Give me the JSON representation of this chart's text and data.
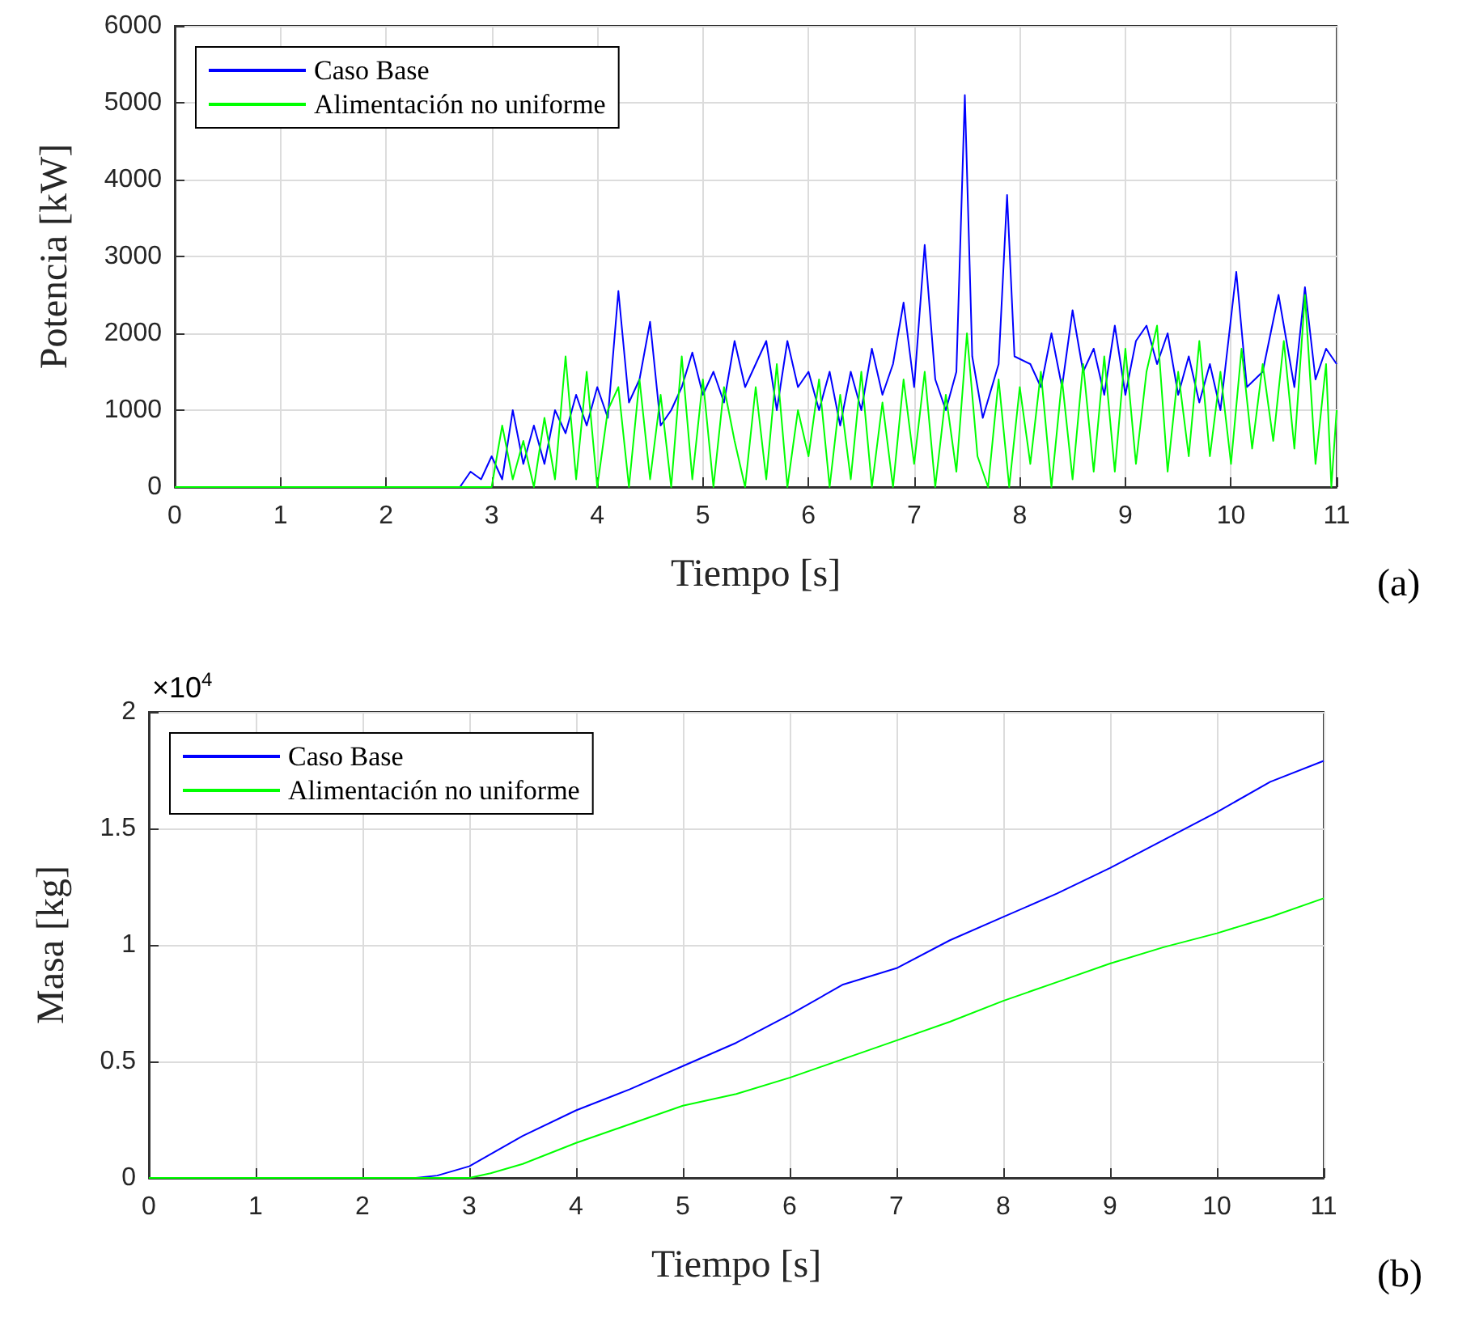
{
  "chart_data": [
    {
      "type": "line",
      "xlabel": "Tiempo [s]",
      "ylabel": "Potencia [kW]",
      "xlim": [
        0,
        11
      ],
      "xticks": [
        0,
        1,
        2,
        3,
        4,
        5,
        6,
        7,
        8,
        9,
        10,
        11
      ],
      "ylim": [
        0,
        6000
      ],
      "yticks": [
        0,
        1000,
        2000,
        3000,
        4000,
        5000,
        6000
      ],
      "grid": true,
      "legend": "top left",
      "annotations": [
        "(a)"
      ],
      "series": [
        {
          "name": "Caso Base",
          "color": "#0000ff",
          "x": [
            0,
            2.7,
            2.8,
            2.9,
            3.0,
            3.1,
            3.2,
            3.3,
            3.4,
            3.5,
            3.6,
            3.7,
            3.8,
            3.9,
            4.0,
            4.1,
            4.2,
            4.3,
            4.4,
            4.5,
            4.6,
            4.7,
            4.8,
            4.9,
            5.0,
            5.1,
            5.2,
            5.3,
            5.4,
            5.5,
            5.6,
            5.7,
            5.8,
            5.9,
            6.0,
            6.1,
            6.2,
            6.3,
            6.4,
            6.5,
            6.6,
            6.7,
            6.8,
            6.9,
            7.0,
            7.1,
            7.2,
            7.3,
            7.4,
            7.48,
            7.55,
            7.65,
            7.8,
            7.88,
            7.95,
            8.1,
            8.2,
            8.3,
            8.4,
            8.5,
            8.6,
            8.7,
            8.8,
            8.9,
            9.0,
            9.1,
            9.2,
            9.3,
            9.4,
            9.5,
            9.6,
            9.7,
            9.8,
            9.9,
            10.05,
            10.15,
            10.3,
            10.45,
            10.6,
            10.7,
            10.8,
            10.9,
            11.0
          ],
          "values": [
            0,
            0,
            200,
            100,
            400,
            100,
            1000,
            300,
            800,
            300,
            1000,
            700,
            1200,
            800,
            1300,
            900,
            2550,
            1100,
            1400,
            2150,
            800,
            1000,
            1300,
            1750,
            1200,
            1500,
            1100,
            1900,
            1300,
            1600,
            1900,
            1000,
            1900,
            1300,
            1500,
            1000,
            1500,
            800,
            1500,
            1000,
            1800,
            1200,
            1600,
            2400,
            1300,
            3150,
            1400,
            1000,
            1500,
            5100,
            1700,
            900,
            1600,
            3800,
            1700,
            1600,
            1300,
            2000,
            1300,
            2300,
            1500,
            1800,
            1200,
            2100,
            1200,
            1900,
            2100,
            1600,
            2000,
            1200,
            1700,
            1100,
            1600,
            1000,
            2800,
            1300,
            1500,
            2500,
            1300,
            2600,
            1400,
            1800,
            1600
          ]
        },
        {
          "name": "Alimentación no uniforme",
          "color": "#00ff00",
          "x": [
            0,
            3.0,
            3.1,
            3.2,
            3.3,
            3.4,
            3.5,
            3.6,
            3.7,
            3.8,
            3.9,
            4.0,
            4.1,
            4.2,
            4.3,
            4.4,
            4.5,
            4.6,
            4.7,
            4.8,
            4.9,
            5.0,
            5.1,
            5.2,
            5.3,
            5.4,
            5.5,
            5.6,
            5.7,
            5.8,
            5.9,
            6.0,
            6.1,
            6.2,
            6.3,
            6.4,
            6.5,
            6.6,
            6.7,
            6.8,
            6.9,
            7.0,
            7.1,
            7.2,
            7.3,
            7.4,
            7.5,
            7.6,
            7.7,
            7.8,
            7.9,
            8.0,
            8.1,
            8.2,
            8.3,
            8.4,
            8.5,
            8.6,
            8.7,
            8.8,
            8.9,
            9.0,
            9.1,
            9.2,
            9.3,
            9.4,
            9.5,
            9.6,
            9.7,
            9.8,
            9.9,
            10.0,
            10.1,
            10.2,
            10.3,
            10.4,
            10.5,
            10.6,
            10.7,
            10.8,
            10.9,
            10.95,
            11.0
          ],
          "values": [
            0,
            0,
            800,
            100,
            600,
            0,
            900,
            100,
            1700,
            100,
            1500,
            0,
            1000,
            1300,
            0,
            1400,
            100,
            1200,
            0,
            1700,
            100,
            1400,
            0,
            1300,
            600,
            0,
            1300,
            100,
            1600,
            0,
            1000,
            400,
            1400,
            0,
            1200,
            100,
            1500,
            0,
            1100,
            0,
            1400,
            300,
            1500,
            0,
            1200,
            200,
            2000,
            400,
            0,
            1400,
            0,
            1300,
            300,
            1500,
            0,
            1400,
            100,
            1600,
            200,
            1700,
            200,
            1800,
            300,
            1500,
            2100,
            200,
            1500,
            400,
            1900,
            400,
            1500,
            300,
            1800,
            500,
            1600,
            600,
            1900,
            500,
            2500,
            300,
            1600,
            0,
            1000
          ]
        }
      ]
    },
    {
      "type": "line",
      "xlabel": "Tiempo [s]",
      "ylabel": "Masa [kg]",
      "xlim": [
        0,
        11
      ],
      "xticks": [
        0,
        1,
        2,
        3,
        4,
        5,
        6,
        7,
        8,
        9,
        10,
        11
      ],
      "ylim": [
        0,
        2
      ],
      "yticks": [
        0,
        0.5,
        1,
        1.5,
        2
      ],
      "grid": true,
      "legend": "top left",
      "annotations": [
        "×10$^{4}$",
        "(b)"
      ],
      "series": [
        {
          "name": "Caso Base",
          "color": "#0000ff",
          "x": [
            0,
            2.5,
            2.7,
            3.0,
            3.5,
            4.0,
            4.5,
            5.0,
            5.5,
            6.0,
            6.5,
            7.0,
            7.5,
            8.0,
            8.5,
            9.0,
            9.5,
            10.0,
            10.5,
            11.0
          ],
          "values": [
            0,
            0,
            0.01,
            0.05,
            0.18,
            0.29,
            0.38,
            0.48,
            0.58,
            0.7,
            0.83,
            0.9,
            1.02,
            1.12,
            1.22,
            1.33,
            1.45,
            1.57,
            1.7,
            1.79
          ]
        },
        {
          "name": "Alimentación no uniforme",
          "color": "#00ff00",
          "x": [
            0,
            3.0,
            3.2,
            3.5,
            4.0,
            4.5,
            5.0,
            5.5,
            6.0,
            6.5,
            7.0,
            7.5,
            8.0,
            8.5,
            9.0,
            9.5,
            10.0,
            10.5,
            11.0
          ],
          "values": [
            0,
            0,
            0.02,
            0.06,
            0.15,
            0.23,
            0.31,
            0.36,
            0.43,
            0.51,
            0.59,
            0.67,
            0.76,
            0.84,
            0.92,
            0.99,
            1.05,
            1.12,
            1.2
          ]
        }
      ]
    }
  ]
}
